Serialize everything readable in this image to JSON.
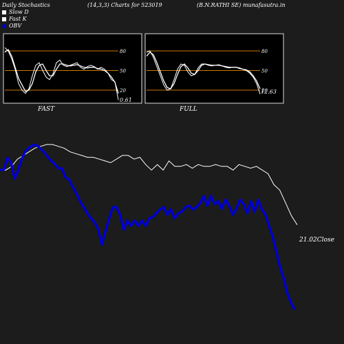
{
  "header": {
    "left": "Daily Stochastics",
    "center": "(14,3,3) Charts for 523019",
    "right": "(B.N.RATHI SE) munafasutra.in"
  },
  "legend": [
    {
      "label": "Slow  D",
      "color": "#ffffff",
      "shape": "square"
    },
    {
      "label": "Fast K",
      "color": "#ffffff",
      "shape": "square"
    },
    {
      "label": "OBV",
      "color": "#0000cc",
      "shape": "circle"
    }
  ],
  "colors": {
    "background": "#1c1c1c",
    "panel": "#000000",
    "grid_level": "#cc7a00",
    "line": "#ffffff",
    "obv": "#0000cc"
  },
  "chart_data": [
    {
      "type": "line",
      "title": "FAST",
      "ylim": [
        0,
        100
      ],
      "yticks": [
        20,
        50,
        80
      ],
      "last_value_label": "0.61",
      "series": [
        {
          "name": "Fast K",
          "values": [
            85,
            80,
            68,
            52,
            30,
            20,
            15,
            22,
            42,
            58,
            62,
            50,
            40,
            36,
            45,
            62,
            66,
            58,
            56,
            58,
            60,
            62,
            55,
            52,
            56,
            58,
            56,
            52,
            55,
            52,
            46,
            36,
            33,
            5
          ]
        },
        {
          "name": "Slow  D",
          "values": [
            78,
            82,
            72,
            55,
            38,
            28,
            18,
            20,
            30,
            48,
            58,
            60,
            50,
            42,
            42,
            52,
            60,
            60,
            58,
            57,
            58,
            59,
            57,
            55,
            54,
            55,
            55,
            53,
            52,
            50,
            46,
            40,
            32,
            15
          ]
        }
      ]
    },
    {
      "type": "line",
      "title": "FULL",
      "ylim": [
        0,
        100
      ],
      "yticks": [
        20,
        50,
        80
      ],
      "last_value_label": "12.63",
      "series": [
        {
          "name": "Fast K",
          "values": [
            78,
            80,
            70,
            56,
            42,
            28,
            20,
            22,
            36,
            52,
            60,
            58,
            48,
            42,
            44,
            54,
            60,
            60,
            58,
            57,
            58,
            59,
            57,
            55,
            54,
            55,
            55,
            53,
            52,
            50,
            46,
            40,
            30,
            14
          ]
        },
        {
          "name": "Slow  D",
          "values": [
            72,
            78,
            74,
            62,
            48,
            34,
            24,
            22,
            30,
            44,
            56,
            60,
            54,
            46,
            44,
            50,
            58,
            60,
            59,
            58,
            58,
            58,
            57,
            56,
            55,
            55,
            55,
            54,
            52,
            51,
            48,
            42,
            34,
            22
          ]
        }
      ]
    },
    {
      "type": "line",
      "title": "",
      "last_value_label": "21.02Close",
      "series": [
        {
          "name": "Close",
          "values": [
            38,
            38,
            40,
            44,
            46,
            48,
            50,
            51,
            52,
            52,
            51,
            50,
            48,
            47,
            46,
            45,
            45,
            44,
            43,
            42,
            44,
            46,
            46,
            44,
            45,
            41,
            38,
            41,
            38,
            43,
            40,
            40,
            41,
            39,
            41,
            40,
            40,
            41,
            40,
            40,
            38,
            41,
            40,
            39,
            40,
            38,
            36,
            30,
            27,
            20,
            13,
            8
          ]
        },
        {
          "name": "OBV",
          "values": [
            20,
            20,
            36,
            30,
            8,
            20,
            35,
            45,
            50,
            53,
            53,
            49,
            44,
            38,
            32,
            28,
            22,
            22,
            10,
            7,
            -3,
            -12,
            -22,
            -30,
            -38,
            -45,
            -50,
            -60,
            -80,
            -62,
            -45,
            -30,
            -30,
            -40,
            -60,
            -48,
            -55,
            -48,
            -55,
            -48,
            -55,
            -45,
            -43,
            -38,
            -33,
            -30,
            -40,
            -33,
            -45,
            -38,
            -36,
            -30,
            -28,
            -33,
            -30,
            -25,
            -15,
            -28,
            -15,
            -26,
            -22,
            -32,
            -20,
            -28,
            -40,
            -32,
            -20,
            -26,
            -38,
            -22,
            -36,
            -20,
            -33,
            -40,
            -55,
            -70,
            -90,
            -110,
            -125,
            -145,
            -158,
            -167
          ]
        }
      ]
    }
  ]
}
